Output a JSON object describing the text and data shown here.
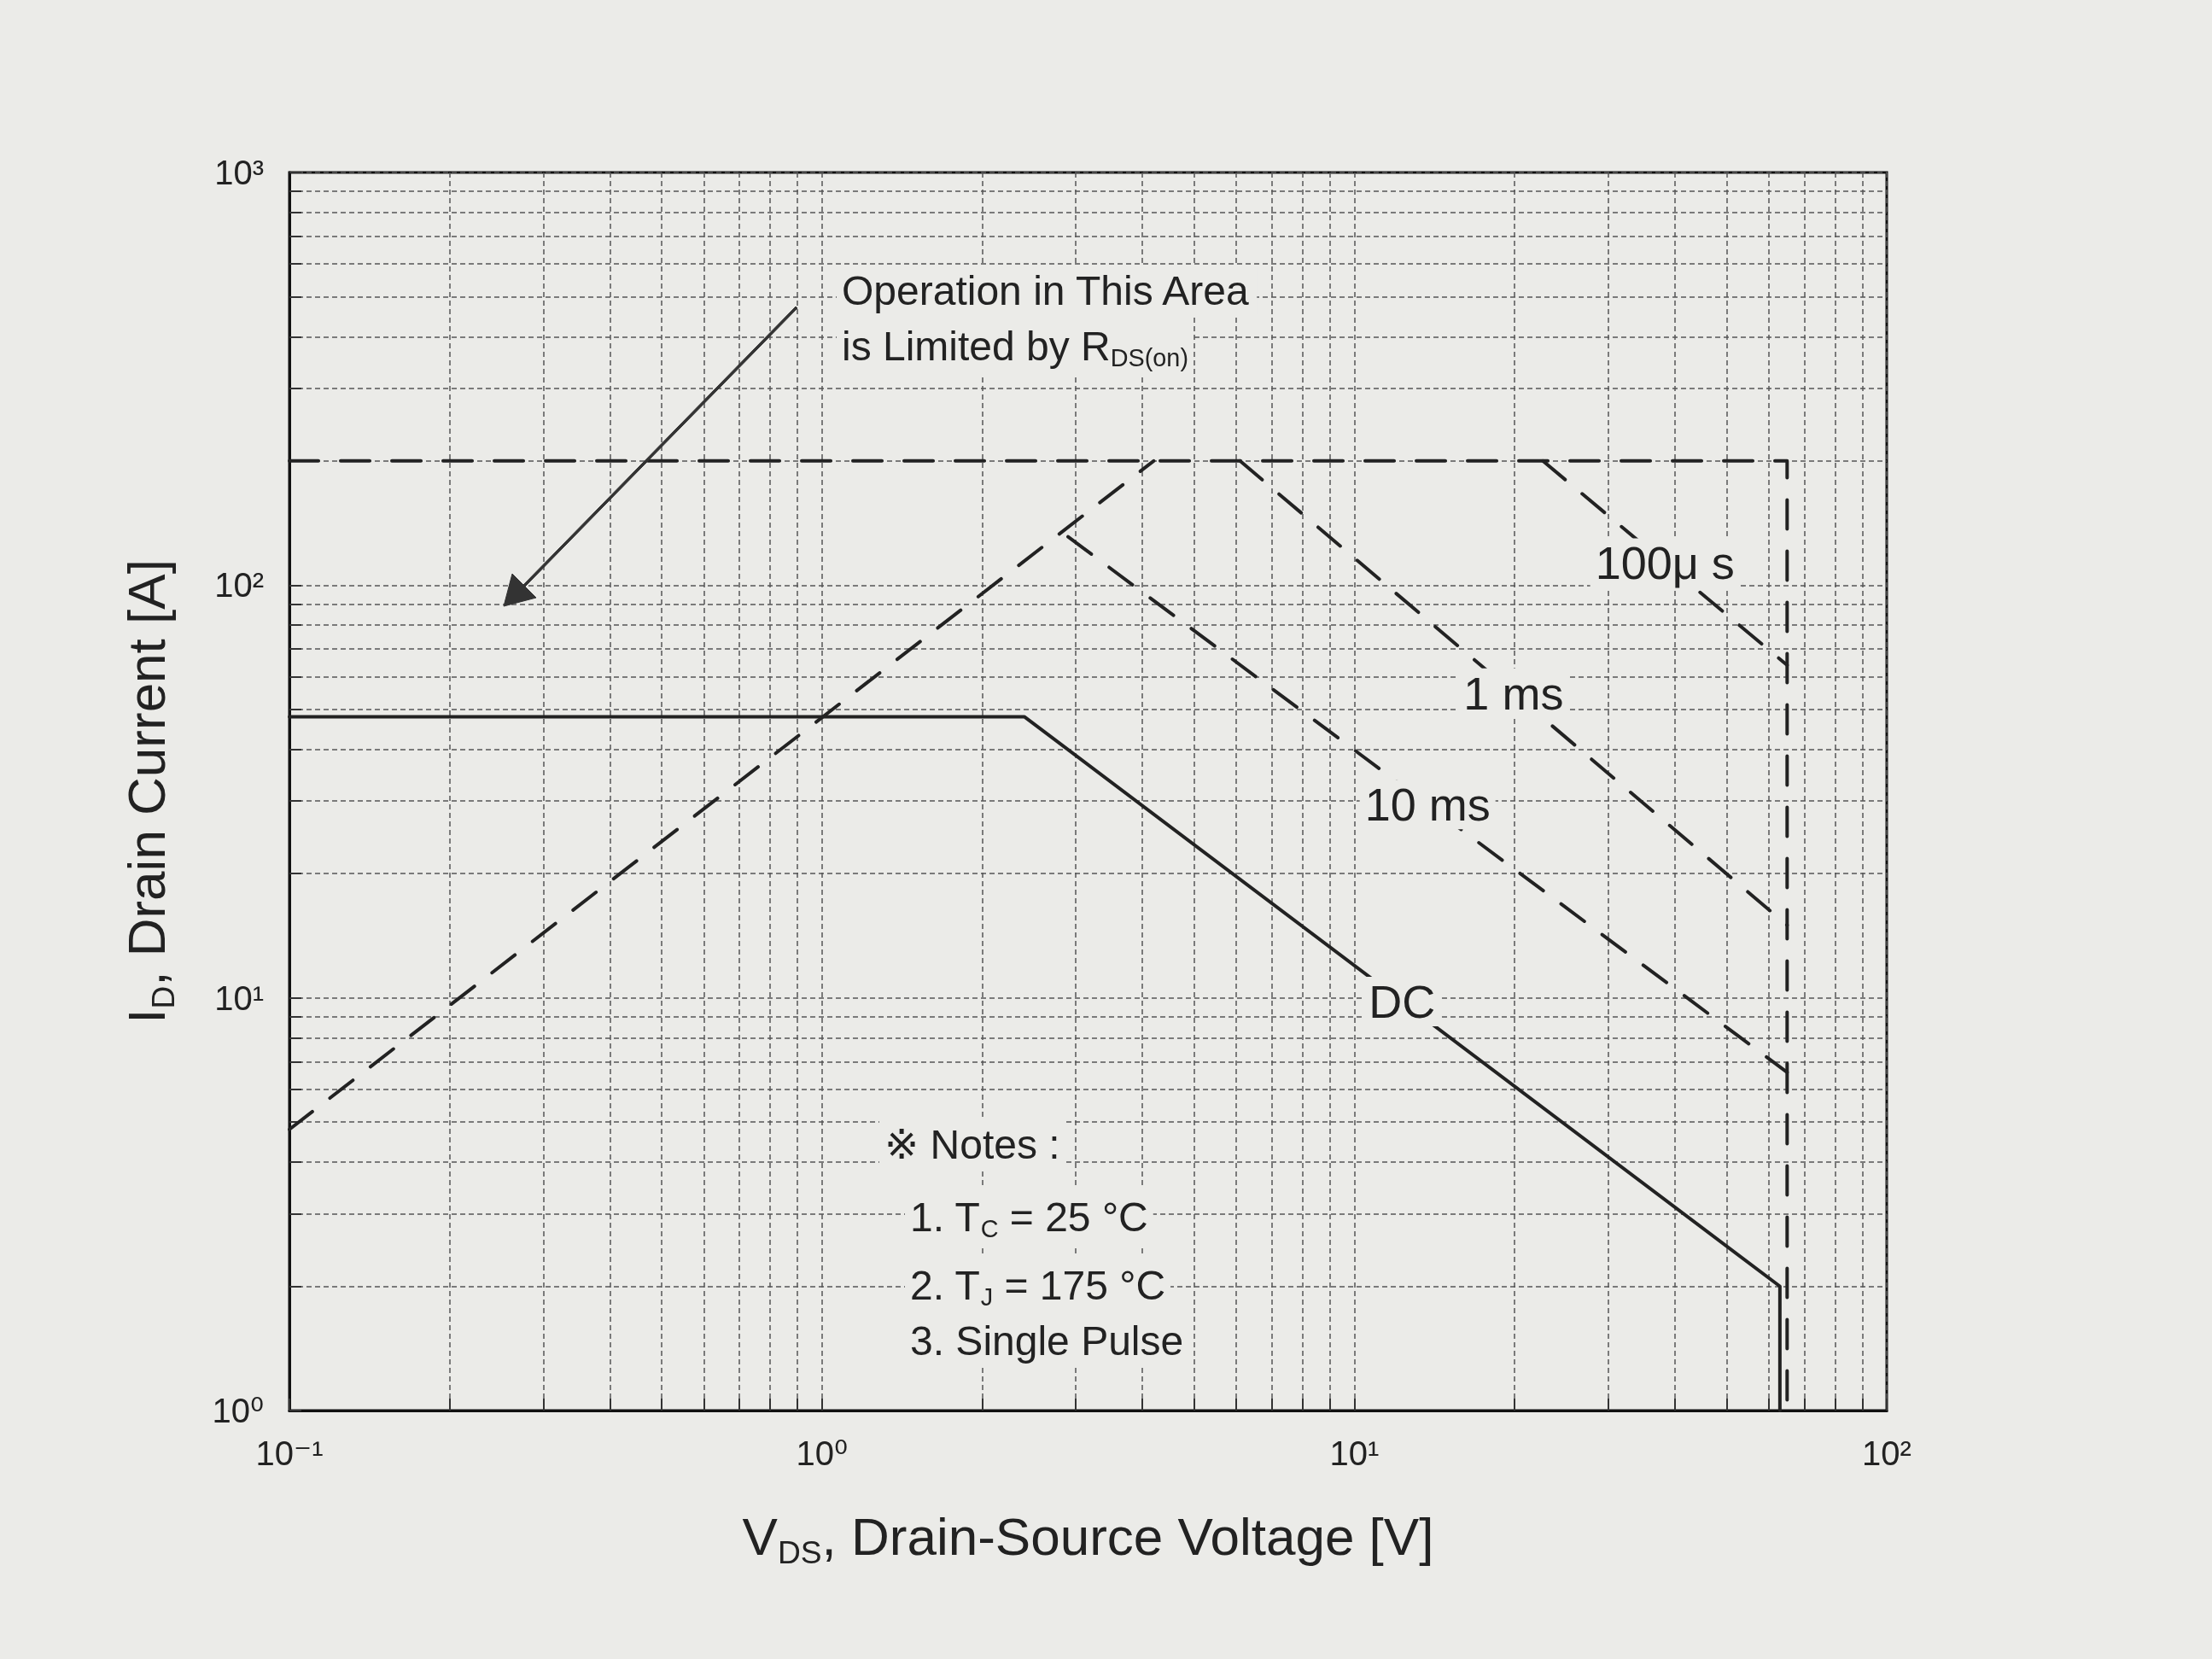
{
  "chart_data": {
    "type": "line",
    "xlabel": "V$_{DS}$, Drain-Source Voltage [V]",
    "ylabel": "I$_{D}$, Drain Current [A]",
    "log": "xy",
    "grid": true,
    "xlim": [
      0.1,
      100
    ],
    "ylim": [
      1,
      1000
    ],
    "xticks": [
      {
        "value": 0.1,
        "label": "10⁻¹"
      },
      {
        "value": 1,
        "label": "10⁰"
      },
      {
        "value": 10,
        "label": "10¹"
      },
      {
        "value": 100,
        "label": "10²"
      }
    ],
    "yticks": [
      {
        "value": 1,
        "label": "10⁰"
      },
      {
        "value": 10,
        "label": "10¹"
      },
      {
        "value": 100,
        "label": "10²"
      },
      {
        "value": 1000,
        "label": "10³"
      }
    ],
    "series": [
      {
        "color": "#222222",
        "line_style": "dashed",
        "x": [
          0.1,
          4.2
        ],
        "values": [
          4.8,
          200
        ]
      },
      {
        "color": "#222222",
        "line_style": "dashed",
        "x": [
          0.1,
          65,
          65
        ],
        "values": [
          200,
          200,
          1
        ]
      },
      {
        "name": "100μ s",
        "color": "#222222",
        "line_style": "dashed",
        "x": [
          22.6,
          65
        ],
        "values": [
          200,
          64
        ]
      },
      {
        "name": "1 ms",
        "color": "#222222",
        "line_style": "dashed",
        "x": [
          6.1,
          65
        ],
        "values": [
          200,
          15
        ]
      },
      {
        "name": "10 ms",
        "color": "#222222",
        "line_style": "dashed",
        "x": [
          2.9,
          65
        ],
        "values": [
          131,
          6.6
        ]
      },
      {
        "name": "DC",
        "color": "#222222",
        "line_style": "solid",
        "x": [
          0.1,
          2.4,
          63,
          63
        ],
        "values": [
          48,
          48,
          2,
          1
        ]
      }
    ],
    "annotations": [
      "Operation in This Area",
      "is Limited by R$_{DS(on)}$",
      "※ Notes :",
      "1. T$_{C}$ = 25 °C",
      "2. T$_{J}$ = 175 °C",
      "3. Single Pulse"
    ]
  }
}
